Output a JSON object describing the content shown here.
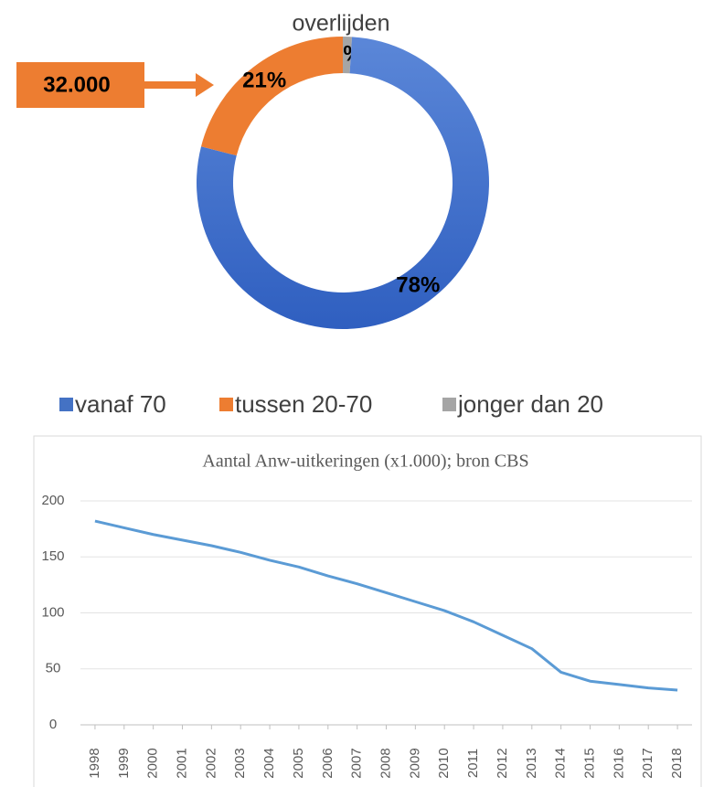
{
  "chart_data": [
    {
      "type": "donut",
      "title": "overlijden",
      "categories": [
        "vanaf 70",
        "tussen 20-70",
        "jonger dan 20"
      ],
      "values": [
        78,
        21,
        1
      ],
      "value_labels": [
        "78%",
        "21%",
        "1%"
      ],
      "colors": [
        "#4472c4",
        "#ed7d31",
        "#a5a5a5"
      ],
      "annotation": "32.000",
      "legend": "top"
    },
    {
      "type": "line",
      "title": "Aantal Anw-uitkeringen (x1.000); bron CBS",
      "x": [
        1998,
        1999,
        2000,
        2001,
        2002,
        2003,
        2004,
        2005,
        2006,
        2007,
        2008,
        2009,
        2010,
        2011,
        2012,
        2013,
        2014,
        2015,
        2016,
        2017,
        2018
      ],
      "series": [
        {
          "color": "#5b9bd5",
          "values": [
            182,
            176,
            170,
            165,
            160,
            154,
            147,
            141,
            133,
            126,
            118,
            110,
            102,
            92,
            80,
            68,
            47,
            39,
            36,
            33,
            31
          ]
        }
      ],
      "xlim": [
        1997.5,
        2018.5
      ],
      "xticks": [
        1998,
        1999,
        2000,
        2001,
        2002,
        2003,
        2004,
        2005,
        2006,
        2007,
        2008,
        2009,
        2010,
        2011,
        2012,
        2013,
        2014,
        2015,
        2016,
        2017,
        2018
      ],
      "ylim": [
        0,
        200
      ],
      "yticks": [
        0,
        50,
        100,
        150,
        200
      ],
      "grid": true
    }
  ]
}
